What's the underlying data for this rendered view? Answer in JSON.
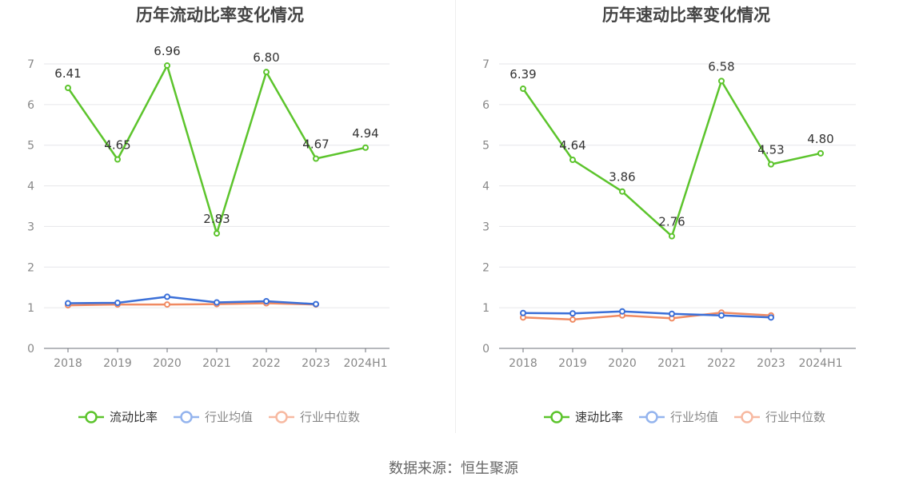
{
  "source_text": "数据来源：恒生聚源",
  "colors": {
    "main": "#5cc42c",
    "avg": "#3a6fd8",
    "median": "#f08a62",
    "avg_legend": "#94b4ee",
    "median_legend": "#f7b9a1",
    "grid": "#e6e6ea",
    "axis": "#6e7079",
    "tick": "#888888",
    "label": "#333333",
    "title": "#444444"
  },
  "chart_data": [
    {
      "type": "line",
      "title": "历年流动比率变化情况",
      "categories": [
        "2018",
        "2019",
        "2020",
        "2021",
        "2022",
        "2023",
        "2024H1"
      ],
      "ylim": [
        0,
        7
      ],
      "yticks": [
        0,
        1,
        2,
        3,
        4,
        5,
        6,
        7
      ],
      "ytick_labels": [
        "0",
        "1",
        "2",
        "3",
        "4",
        "5",
        "6",
        "7"
      ],
      "series": [
        {
          "name": "流动比率",
          "values": [
            6.41,
            4.65,
            6.96,
            2.83,
            6.8,
            4.67,
            4.94
          ],
          "labels": [
            "6.41",
            "4.65",
            "6.96",
            "2.83",
            "6.80",
            "4.67",
            "4.94"
          ]
        },
        {
          "name": "行业均值",
          "values": [
            1.11,
            1.12,
            1.27,
            1.13,
            1.16,
            1.09,
            null
          ]
        },
        {
          "name": "行业中位数",
          "values": [
            1.06,
            1.08,
            1.08,
            1.09,
            1.11,
            1.08,
            null
          ]
        }
      ],
      "legend": [
        "流动比率",
        "行业均值",
        "行业中位数"
      ]
    },
    {
      "type": "line",
      "title": "历年速动比率变化情况",
      "categories": [
        "2018",
        "2019",
        "2020",
        "2021",
        "2022",
        "2023",
        "2024H1"
      ],
      "ylim": [
        0,
        7
      ],
      "yticks": [
        0,
        1,
        2,
        3,
        4,
        5,
        6,
        7
      ],
      "ytick_labels": [
        "0",
        "1",
        "2",
        "3",
        "4",
        "5",
        "6",
        "7"
      ],
      "series": [
        {
          "name": "速动比率",
          "values": [
            6.39,
            4.64,
            3.86,
            2.76,
            6.58,
            4.53,
            4.8
          ],
          "labels": [
            "6.39",
            "4.64",
            "3.86",
            "2.76",
            "6.58",
            "4.53",
            "4.80"
          ]
        },
        {
          "name": "行业均值",
          "values": [
            0.87,
            0.86,
            0.91,
            0.85,
            0.81,
            0.76,
            null
          ]
        },
        {
          "name": "行业中位数",
          "values": [
            0.76,
            0.71,
            0.81,
            0.74,
            0.88,
            0.81,
            null
          ]
        }
      ],
      "legend": [
        "速动比率",
        "行业均值",
        "行业中位数"
      ]
    }
  ]
}
